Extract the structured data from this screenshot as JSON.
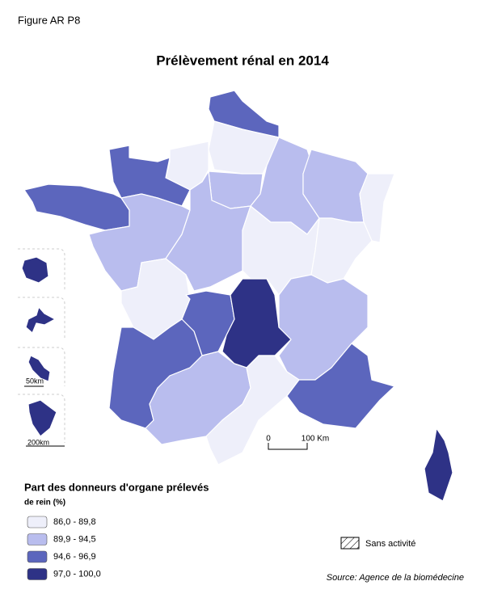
{
  "header": {
    "figure_label": "Figure AR P8",
    "title": "Prélèvement rénal en 2014"
  },
  "scale": {
    "zero": "0",
    "distance": "100 Km"
  },
  "insets": {
    "small_scale": "50km",
    "large_scale": "200km"
  },
  "legend": {
    "title": "Part des donneurs d'organe prélevés",
    "subtitle": "de rein (%)",
    "items": [
      {
        "label": "86,0 - 89,8",
        "color": "#eeeffa"
      },
      {
        "label": "89,9 - 94,5",
        "color": "#b9bdee"
      },
      {
        "label": "94,6 - 96,9",
        "color": "#5c66bd"
      },
      {
        "label": "97,0 - 100,0",
        "color": "#2e3286"
      }
    ],
    "no_activity": "Sans activité"
  },
  "source": "Source: Agence de la biomédecine"
}
